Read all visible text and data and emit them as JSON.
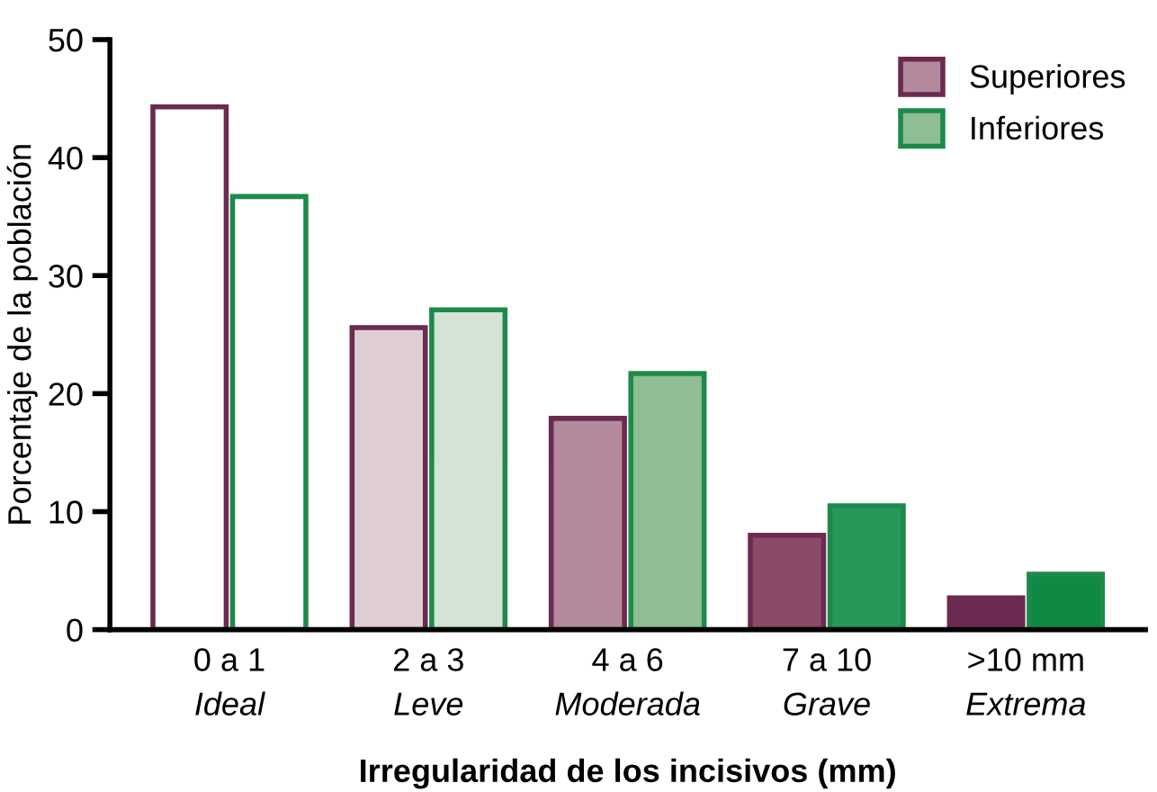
{
  "chart_data": {
    "type": "bar",
    "xlabel": "Irregularidad de los incisivos (mm)",
    "ylabel": "Porcentaje de la población",
    "categories": [
      "0 a 1\nIdeal",
      "2 a 3\nLeve",
      "4 a 6\nModerada",
      "7 a 10\nGrave",
      ">10 mm\nExtrema"
    ],
    "series": [
      {
        "name": "Superiores",
        "color": "#6b2a4f",
        "colors": [
          "#ffffff",
          "#dfcdd5",
          "#b3899c",
          "#8a4a68",
          "#6b2a4f"
        ],
        "values": [
          44.3,
          25.6,
          17.9,
          8.0,
          2.7
        ]
      },
      {
        "name": "Inferiores",
        "color": "#1e8a4a",
        "colors": [
          "#ffffff",
          "#d5e2d6",
          "#8fbd94",
          "#27975a",
          "#0e8a44"
        ],
        "values": [
          36.7,
          27.1,
          21.7,
          10.5,
          4.7
        ]
      }
    ],
    "ylim": [
      0,
      50
    ],
    "yticks": [
      0,
      10,
      20,
      30,
      40,
      50
    ],
    "grid": false,
    "legend": "top right"
  }
}
